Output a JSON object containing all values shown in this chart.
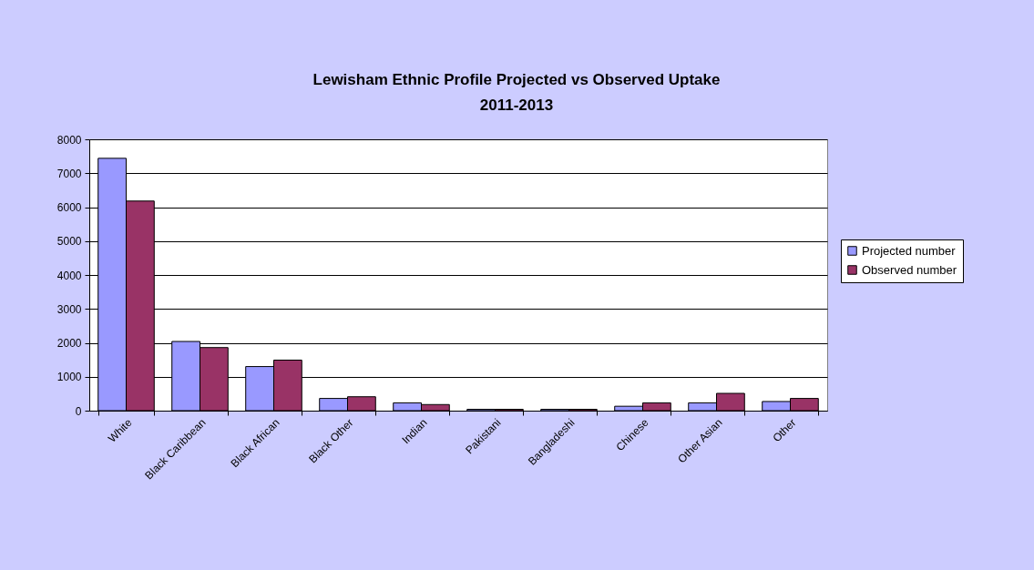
{
  "chart_data": {
    "type": "bar",
    "title": "Lewisham Ethnic Profile Projected vs Observed Uptake\n2011-2013",
    "categories": [
      "White",
      "Black Caribbean",
      "Black African",
      "Black Other",
      "Indian",
      "Pakistani",
      "Bangladeshi",
      "Chinese",
      "Other Asian",
      "Other"
    ],
    "series": [
      {
        "name": "Projected number",
        "color": "#9999ff",
        "values": [
          7440,
          2040,
          1300,
          360,
          230,
          40,
          40,
          130,
          230,
          270
        ]
      },
      {
        "name": "Observed number",
        "color": "#993366",
        "values": [
          6180,
          1860,
          1490,
          410,
          180,
          40,
          40,
          230,
          510,
          360
        ]
      }
    ],
    "ylim": [
      0,
      8000
    ],
    "yticks": [
      0,
      1000,
      2000,
      3000,
      4000,
      5000,
      6000,
      7000,
      8000
    ],
    "grid": "y",
    "legend": "right"
  }
}
